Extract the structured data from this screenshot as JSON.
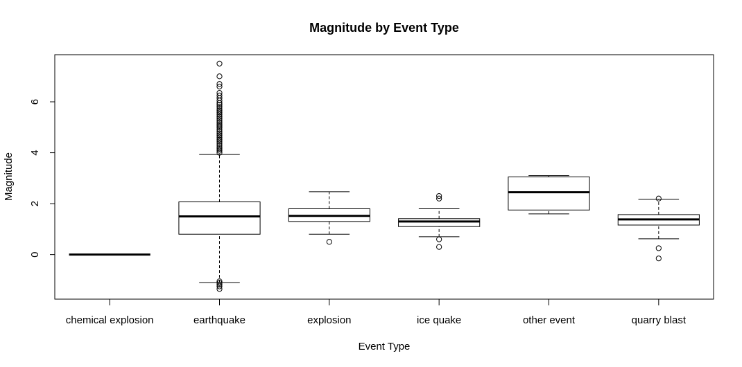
{
  "chart_data": {
    "type": "boxplot",
    "title": "Magnitude by Event Type",
    "xlabel": "Event Type",
    "ylabel": "Magnitude",
    "ylim": [
      -1.75,
      7.85
    ],
    "yticks": [
      0,
      2,
      4,
      6
    ],
    "grid": false,
    "legend": "none",
    "categories": [
      "chemical explosion",
      "earthquake",
      "explosion",
      "ice quake",
      "other event",
      "quarry blast"
    ],
    "boxes": [
      {
        "category": "chemical explosion",
        "whisker_low": 0.0,
        "q1": 0.0,
        "median": 0.0,
        "q3": 0.0,
        "whisker_high": 0.0,
        "outliers": []
      },
      {
        "category": "earthquake",
        "whisker_low": -1.1,
        "q1": 0.8,
        "median": 1.5,
        "q3": 2.07,
        "whisker_high": 3.93,
        "outliers": [
          -1.05,
          -1.12,
          -1.18,
          -1.25,
          -1.35,
          4.0,
          4.08,
          4.15,
          4.22,
          4.3,
          4.38,
          4.45,
          4.52,
          4.6,
          4.68,
          4.75,
          4.82,
          4.9,
          4.98,
          5.05,
          5.12,
          5.2,
          5.28,
          5.35,
          5.42,
          5.5,
          5.58,
          5.65,
          5.72,
          5.8,
          5.88,
          5.95,
          6.05,
          6.15,
          6.25,
          6.35,
          6.6,
          6.7,
          7.0,
          7.5
        ]
      },
      {
        "category": "explosion",
        "whisker_low": 0.8,
        "q1": 1.3,
        "median": 1.52,
        "q3": 1.8,
        "whisker_high": 2.47,
        "outliers": [
          0.5
        ]
      },
      {
        "category": "ice quake",
        "whisker_low": 0.7,
        "q1": 1.1,
        "median": 1.3,
        "q3": 1.41,
        "whisker_high": 1.8,
        "outliers": [
          0.3,
          0.6,
          2.2,
          2.3
        ]
      },
      {
        "category": "other event",
        "whisker_low": 1.6,
        "q1": 1.75,
        "median": 2.45,
        "q3": 3.05,
        "whisker_high": 3.1,
        "outliers": []
      },
      {
        "category": "quarry blast",
        "whisker_low": 0.62,
        "q1": 1.16,
        "median": 1.38,
        "q3": 1.57,
        "whisker_high": 2.17,
        "outliers": [
          -0.15,
          0.25,
          2.2
        ]
      }
    ]
  }
}
